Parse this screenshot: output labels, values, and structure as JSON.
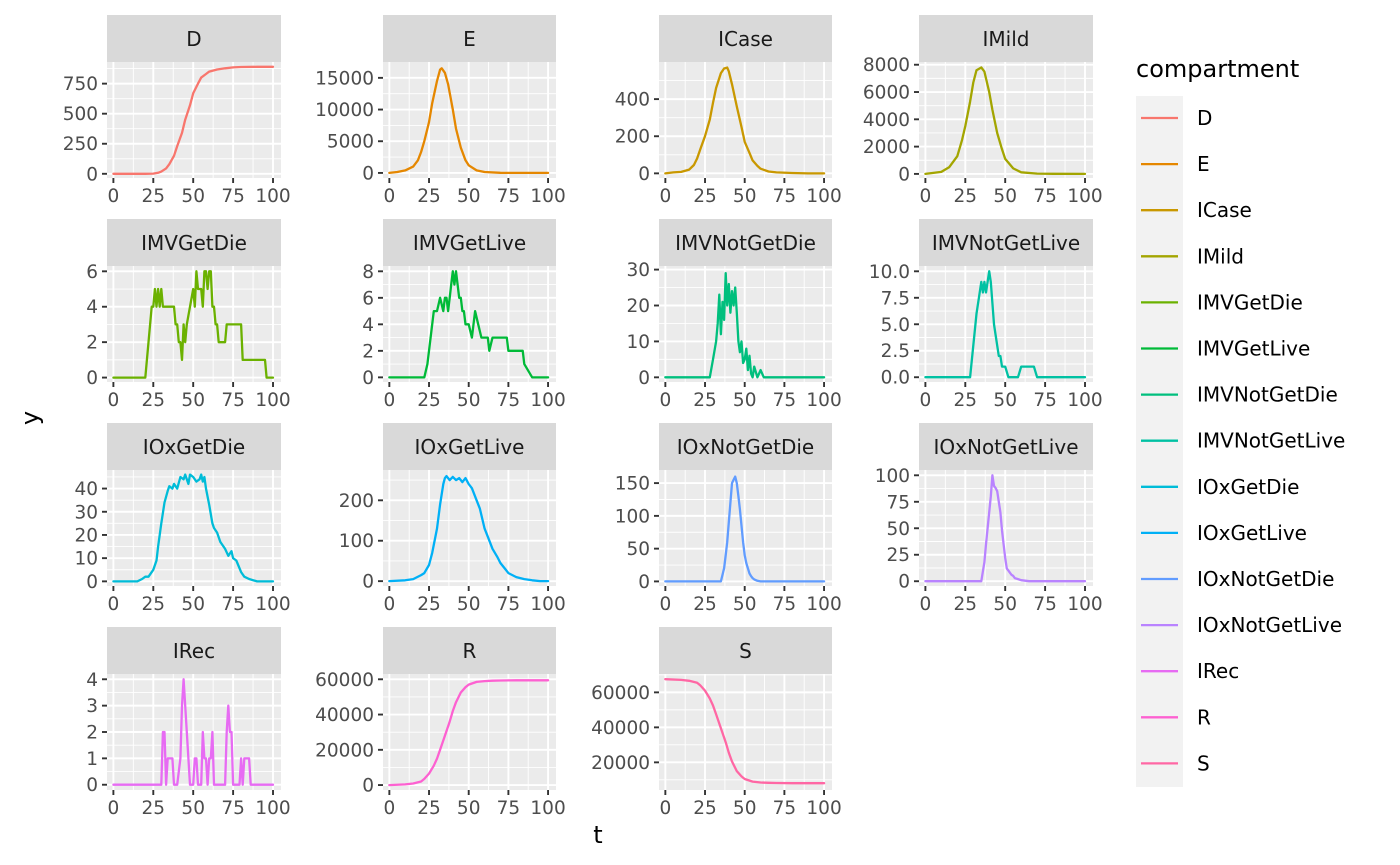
{
  "chart_data": {
    "type": "line",
    "layout": "facet_wrap",
    "ncol": 4,
    "xlabel": "t",
    "ylabel": "y",
    "legend": {
      "title": "compartment",
      "position": "right"
    },
    "grid": true,
    "x_ticks": [
      0,
      25,
      50,
      75,
      100
    ],
    "panels": [
      {
        "name": "D",
        "color": "#F8766D",
        "ylim": [
          -35,
          930
        ],
        "yticks": [
          0,
          250,
          500,
          750
        ],
        "ytick_labels": [
          "0",
          "250",
          "500",
          "750"
        ],
        "x": [
          0,
          20,
          25,
          28,
          30,
          33,
          35,
          38,
          40,
          43,
          45,
          48,
          50,
          53,
          55,
          58,
          60,
          65,
          70,
          75,
          80,
          90,
          100
        ],
        "y": [
          0,
          0,
          2,
          8,
          18,
          45,
          80,
          150,
          230,
          340,
          450,
          570,
          670,
          750,
          800,
          830,
          850,
          868,
          878,
          885,
          888,
          890,
          890
        ]
      },
      {
        "name": "E",
        "color": "#E58700",
        "ylim": [
          -800,
          17500
        ],
        "yticks": [
          0,
          5000,
          10000,
          15000
        ],
        "ytick_labels": [
          "0",
          "5000",
          "10000",
          "15000"
        ],
        "x": [
          0,
          5,
          10,
          15,
          18,
          20,
          22,
          25,
          27,
          30,
          32,
          33,
          35,
          37,
          40,
          42,
          45,
          48,
          50,
          55,
          60,
          70,
          80,
          100
        ],
        "y": [
          0,
          150,
          400,
          1000,
          2000,
          3300,
          5000,
          8000,
          11000,
          14500,
          16300,
          16500,
          15800,
          14000,
          10000,
          7000,
          4000,
          2000,
          1200,
          400,
          150,
          20,
          5,
          0
        ]
      },
      {
        "name": "ICase",
        "color": "#C99800",
        "ylim": [
          -25,
          600
        ],
        "yticks": [
          0,
          200,
          400
        ],
        "ytick_labels": [
          "0",
          "200",
          "400"
        ],
        "x": [
          0,
          5,
          10,
          15,
          18,
          20,
          22,
          25,
          28,
          30,
          32,
          35,
          37,
          39,
          40,
          42,
          45,
          48,
          50,
          53,
          55,
          58,
          60,
          65,
          70,
          80,
          90,
          100
        ],
        "y": [
          0,
          5,
          8,
          20,
          45,
          80,
          130,
          200,
          290,
          380,
          460,
          540,
          565,
          570,
          550,
          480,
          360,
          250,
          170,
          110,
          70,
          40,
          25,
          10,
          5,
          2,
          0,
          0
        ]
      },
      {
        "name": "IMild",
        "color": "#A3A500",
        "ylim": [
          -300,
          8200
        ],
        "yticks": [
          0,
          2000,
          4000,
          6000,
          8000
        ],
        "ytick_labels": [
          "0",
          "2000",
          "4000",
          "6000",
          "8000"
        ],
        "x": [
          0,
          10,
          15,
          20,
          23,
          25,
          28,
          30,
          32,
          35,
          37,
          40,
          42,
          45,
          48,
          50,
          55,
          60,
          70,
          80,
          100
        ],
        "y": [
          0,
          150,
          500,
          1300,
          2500,
          3500,
          5300,
          6700,
          7600,
          7800,
          7500,
          6000,
          4700,
          3000,
          1800,
          1100,
          400,
          120,
          20,
          5,
          0
        ]
      },
      {
        "name": "IMVGetDie",
        "color": "#6BB100",
        "ylim": [
          -0.25,
          6.3
        ],
        "yticks": [
          0,
          2,
          4,
          6
        ],
        "ytick_labels": [
          "0",
          "2",
          "4",
          "6"
        ],
        "x": [
          0,
          20,
          22,
          24,
          25,
          26,
          27,
          28,
          29,
          30,
          31,
          32,
          38,
          39,
          40,
          41,
          42,
          43,
          44,
          45,
          46,
          48,
          50,
          51,
          52,
          53,
          55,
          56,
          57,
          58,
          59,
          60,
          61,
          62,
          63,
          64,
          65,
          66,
          68,
          70,
          71,
          72,
          80,
          81,
          90,
          91,
          95,
          96,
          100
        ],
        "y": [
          0,
          0,
          2,
          4,
          4,
          5,
          4,
          5,
          4,
          5,
          4,
          4,
          4,
          3,
          3,
          2,
          2,
          1,
          3,
          2,
          3,
          4,
          5,
          4,
          6,
          5,
          5,
          4,
          6,
          6,
          5,
          6,
          6,
          4,
          4,
          3,
          3,
          2,
          2,
          2,
          3,
          3,
          3,
          1,
          1,
          1,
          1,
          0,
          0
        ]
      },
      {
        "name": "IMVGetLive",
        "color": "#00BA38",
        "ylim": [
          -0.35,
          8.4
        ],
        "yticks": [
          0,
          2,
          4,
          6,
          8
        ],
        "ytick_labels": [
          "0",
          "2",
          "4",
          "6",
          "8"
        ],
        "x": [
          0,
          22,
          24,
          26,
          28,
          30,
          32,
          34,
          35,
          36,
          37,
          38,
          39,
          40,
          41,
          42,
          43,
          44,
          45,
          46,
          47,
          48,
          50,
          52,
          54,
          56,
          58,
          60,
          62,
          63,
          65,
          68,
          70,
          72,
          74,
          75,
          77,
          78,
          80,
          84,
          85,
          90,
          100
        ],
        "y": [
          0,
          0,
          1,
          3,
          5,
          5,
          6,
          5,
          6,
          6,
          5,
          6,
          7,
          8,
          7,
          8,
          7,
          6,
          6,
          5,
          5,
          4,
          4,
          3,
          5,
          4,
          3,
          3,
          3,
          2,
          3,
          3,
          3,
          3,
          3,
          2,
          2,
          2,
          2,
          2,
          1,
          0,
          0
        ]
      },
      {
        "name": "IMVNotGetDie",
        "color": "#00BF7D",
        "ylim": [
          -1.3,
          31
        ],
        "yticks": [
          0,
          10,
          20,
          30
        ],
        "ytick_labels": [
          "0",
          "10",
          "20",
          "30"
        ],
        "x": [
          0,
          28,
          30,
          32,
          33,
          34,
          35,
          36,
          37,
          38,
          39,
          40,
          41,
          42,
          43,
          44,
          45,
          46,
          47,
          48,
          49,
          50,
          51,
          52,
          53,
          54,
          55,
          56,
          58,
          60,
          62,
          65,
          70,
          100
        ],
        "y": [
          0,
          0,
          5,
          10,
          15,
          23,
          12,
          21,
          16,
          29,
          20,
          26,
          18,
          24,
          20,
          25,
          18,
          10,
          7,
          10,
          4,
          5,
          8,
          2,
          6,
          1,
          0,
          3,
          0,
          2,
          0,
          0,
          0,
          0
        ]
      },
      {
        "name": "IMVNotGetLive",
        "color": "#00C1A3",
        "ylim": [
          -0.45,
          10.5
        ],
        "yticks": [
          0,
          2.5,
          5,
          7.5,
          10
        ],
        "ytick_labels": [
          "0.0",
          "2.5",
          "5.0",
          "7.5",
          "10.0"
        ],
        "x": [
          0,
          28,
          30,
          32,
          34,
          35,
          36,
          37,
          38,
          39,
          40,
          41,
          42,
          43,
          44,
          45,
          46,
          47,
          48,
          50,
          52,
          55,
          58,
          60,
          61,
          62,
          68,
          70,
          71,
          100
        ],
        "y": [
          0,
          0,
          3,
          6,
          8,
          9,
          8,
          9,
          8,
          9,
          10,
          9,
          7,
          5,
          4,
          3,
          2,
          2,
          1,
          1,
          0,
          0,
          0,
          1,
          1,
          1,
          1,
          0,
          0,
          0
        ]
      },
      {
        "name": "IOxGetDie",
        "color": "#00BCD8",
        "ylim": [
          -2,
          48
        ],
        "yticks": [
          0,
          10,
          20,
          30,
          40
        ],
        "ytick_labels": [
          "0",
          "10",
          "20",
          "30",
          "40"
        ],
        "x": [
          0,
          15,
          18,
          20,
          22,
          25,
          27,
          28,
          30,
          32,
          34,
          35,
          37,
          38,
          40,
          42,
          44,
          45,
          47,
          48,
          50,
          52,
          54,
          55,
          56,
          57,
          58,
          60,
          62,
          63,
          65,
          67,
          70,
          72,
          74,
          75,
          77,
          80,
          82,
          85,
          90,
          100
        ],
        "y": [
          0,
          0,
          1,
          2,
          2,
          5,
          9,
          15,
          25,
          34,
          39,
          41,
          40,
          42,
          40,
          45,
          44,
          46,
          42,
          46,
          45,
          43,
          44,
          46,
          43,
          45,
          40,
          33,
          25,
          23,
          21,
          17,
          14,
          11,
          13,
          10,
          9,
          4,
          2,
          1,
          0,
          0
        ]
      },
      {
        "name": "IOxGetLive",
        "color": "#00B0F6",
        "ylim": [
          -12,
          275
        ],
        "yticks": [
          0,
          100,
          200
        ],
        "ytick_labels": [
          "0",
          "100",
          "200"
        ],
        "x": [
          0,
          10,
          15,
          20,
          22,
          25,
          27,
          30,
          32,
          34,
          35,
          36,
          38,
          40,
          42,
          44,
          46,
          48,
          50,
          52,
          55,
          57,
          60,
          62,
          65,
          68,
          70,
          73,
          75,
          80,
          85,
          90,
          95,
          100
        ],
        "y": [
          0,
          2,
          5,
          15,
          20,
          40,
          70,
          130,
          190,
          240,
          255,
          260,
          250,
          258,
          250,
          255,
          245,
          255,
          240,
          230,
          200,
          180,
          130,
          110,
          80,
          60,
          45,
          30,
          20,
          10,
          5,
          2,
          0,
          0
        ]
      },
      {
        "name": "IOxNotGetDie",
        "color": "#619CFF",
        "ylim": [
          -7,
          170
        ],
        "yticks": [
          0,
          50,
          100,
          150
        ],
        "ytick_labels": [
          "0",
          "50",
          "100",
          "150"
        ],
        "x": [
          0,
          35,
          37,
          38,
          39,
          40,
          41,
          42,
          43,
          44,
          45,
          46,
          47,
          48,
          49,
          50,
          51,
          52,
          53,
          54,
          55,
          56,
          58,
          60,
          65,
          100
        ],
        "y": [
          0,
          0,
          20,
          40,
          60,
          90,
          120,
          150,
          155,
          160,
          150,
          130,
          110,
          85,
          60,
          40,
          28,
          20,
          12,
          8,
          5,
          3,
          1,
          0,
          0,
          0
        ]
      },
      {
        "name": "IOxNotGetLive",
        "color": "#B983FF",
        "ylim": [
          -4.5,
          105
        ],
        "yticks": [
          0,
          25,
          50,
          75,
          100
        ],
        "ytick_labels": [
          "0",
          "25",
          "50",
          "75",
          "100"
        ],
        "x": [
          0,
          35,
          37,
          38,
          39,
          40,
          41,
          42,
          43,
          44,
          45,
          46,
          47,
          48,
          49,
          50,
          51,
          52,
          53,
          54,
          55,
          56,
          58,
          60,
          65,
          100
        ],
        "y": [
          0,
          0,
          18,
          35,
          50,
          65,
          80,
          100,
          90,
          88,
          85,
          75,
          65,
          48,
          35,
          22,
          12,
          10,
          8,
          6,
          5,
          3,
          2,
          1,
          0,
          0
        ]
      },
      {
        "name": "IRec",
        "color": "#E76BF3",
        "ylim": [
          -0.2,
          4.2
        ],
        "yticks": [
          0,
          1,
          2,
          3,
          4
        ],
        "ytick_labels": [
          "0",
          "1",
          "2",
          "3",
          "4"
        ],
        "x": [
          0,
          29,
          30,
          31,
          32,
          33,
          34,
          35,
          37,
          38,
          39,
          40,
          42,
          43,
          44,
          45,
          46,
          47,
          48,
          50,
          51,
          52,
          53,
          55,
          56,
          57,
          58,
          59,
          60,
          61,
          62,
          63,
          65,
          66,
          67,
          68,
          70,
          71,
          72,
          73,
          74,
          75,
          76,
          78,
          79,
          80,
          81,
          82,
          85,
          86,
          88,
          89,
          100
        ],
        "y": [
          0,
          0,
          0,
          2,
          2,
          0,
          1,
          1,
          1,
          0,
          0,
          0,
          1,
          3,
          4,
          3,
          2,
          1,
          0,
          0,
          1,
          1,
          0,
          0,
          2,
          1,
          1,
          0,
          1,
          1,
          2,
          0,
          0,
          0,
          0,
          0,
          0,
          2,
          3,
          2,
          2,
          0,
          0,
          0,
          0,
          1,
          0,
          1,
          1,
          0,
          0,
          0,
          0
        ]
      },
      {
        "name": "R",
        "color": "#FD61D1",
        "ylim": [
          -2800,
          63000
        ],
        "yticks": [
          0,
          20000,
          40000,
          60000
        ],
        "ytick_labels": [
          "0",
          "20000",
          "40000",
          "60000"
        ],
        "x": [
          0,
          10,
          15,
          20,
          22,
          25,
          28,
          30,
          32,
          35,
          38,
          40,
          42,
          45,
          48,
          50,
          55,
          60,
          65,
          70,
          80,
          90,
          100
        ],
        "y": [
          0,
          400,
          900,
          2000,
          3500,
          6500,
          11000,
          15000,
          20000,
          28000,
          36000,
          42000,
          47000,
          52500,
          55500,
          57000,
          58500,
          59000,
          59200,
          59300,
          59400,
          59400,
          59400
        ]
      },
      {
        "name": "S",
        "color": "#FF67A4",
        "ylim": [
          4200,
          70500
        ],
        "yticks": [
          20000,
          40000,
          60000
        ],
        "ytick_labels": [
          "20000",
          "40000",
          "60000"
        ],
        "x": [
          0,
          10,
          15,
          20,
          22,
          25,
          28,
          30,
          32,
          35,
          38,
          40,
          42,
          45,
          48,
          50,
          55,
          60,
          65,
          70,
          80,
          90,
          100
        ],
        "y": [
          67500,
          67100,
          66600,
          65500,
          64000,
          61000,
          56500,
          52500,
          47500,
          39500,
          31500,
          25500,
          20500,
          15000,
          12000,
          10500,
          9000,
          8500,
          8300,
          8200,
          8100,
          8100,
          8100
        ]
      }
    ]
  }
}
